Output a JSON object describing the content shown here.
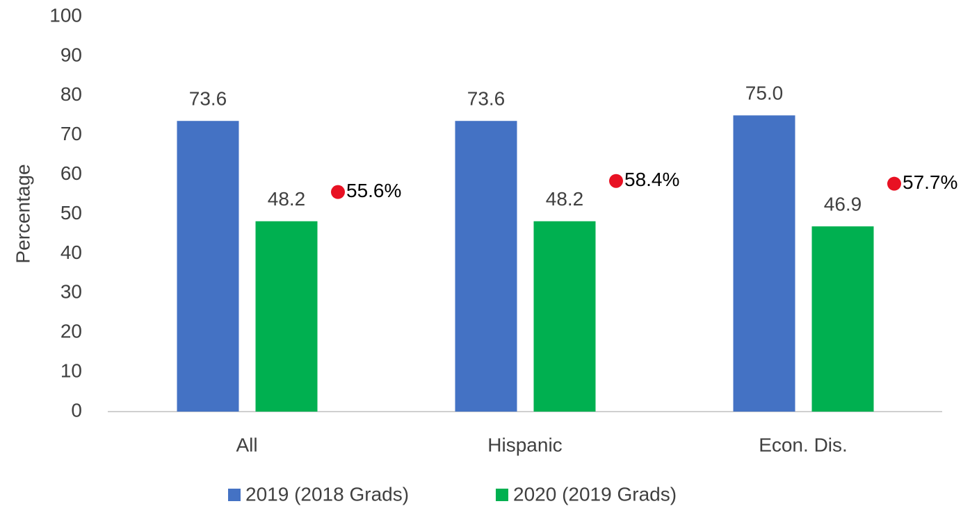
{
  "chart_data": {
    "type": "bar",
    "y_label": "Percentage",
    "categories": [
      "All",
      "Hispanic",
      "Econ. Dis."
    ],
    "series": [
      {
        "name": "2019 (2018 Grads)",
        "color": "#4472c4",
        "values": [
          73.6,
          73.6,
          75.0
        ],
        "value_labels": [
          "73.6",
          "73.6",
          "75.0"
        ]
      },
      {
        "name": "2020 (2019 Grads)",
        "color": "#00b050",
        "values": [
          48.2,
          48.2,
          46.9
        ]
      }
    ],
    "markers": {
      "color": "#e81123",
      "values": [
        55.6,
        58.4,
        57.7
      ],
      "value_labels": [
        "55.6%",
        "58.4%",
        "57.7%"
      ]
    },
    "ylim": [
      0,
      100
    ],
    "yticks": [
      0,
      10,
      20,
      30,
      40,
      50,
      60,
      70,
      80,
      90,
      100
    ],
    "grid": false,
    "legend": "bottom"
  }
}
